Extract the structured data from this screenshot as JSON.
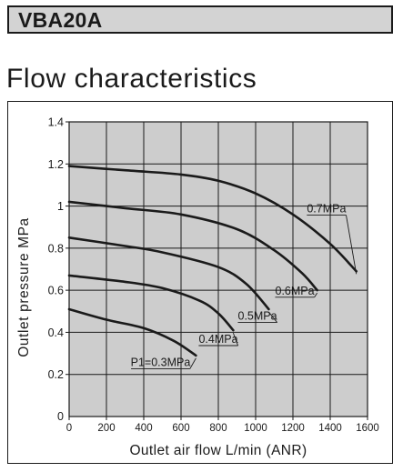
{
  "header": {
    "model": "VBA20A"
  },
  "section": {
    "title": "Flow characteristics"
  },
  "chart_data": {
    "type": "line",
    "xlabel": "Outlet air flow L/min (ANR)",
    "ylabel": "Outlet pressure MPa",
    "xlim": [
      0,
      1600
    ],
    "ylim": [
      0,
      1.4
    ],
    "x_ticks": [
      0,
      200,
      400,
      600,
      800,
      1000,
      1200,
      1400,
      1600
    ],
    "x_tick_labels": [
      "0",
      "200",
      "400",
      "600",
      "800",
      "1000",
      "1200",
      "1400",
      "1600"
    ],
    "y_ticks": [
      0.2,
      0.4,
      0.6,
      0.8,
      1.0,
      1.2,
      1.4
    ],
    "y_tick_labels": [
      "0.2",
      "0.4",
      "0.6",
      "0.8",
      "1",
      "1.2",
      "1.4"
    ],
    "origin_label": "0",
    "grid": true,
    "plot_background": "#cdcdcd",
    "line_color": "#1a1a1a",
    "series": [
      {
        "name": "P1=0.3MPa",
        "x": [
          0,
          200,
          400,
          560,
          680
        ],
        "y": [
          0.51,
          0.46,
          0.42,
          0.36,
          0.29
        ]
      },
      {
        "name": "0.4MPa",
        "x": [
          0,
          300,
          500,
          700,
          800,
          880
        ],
        "y": [
          0.67,
          0.64,
          0.61,
          0.55,
          0.49,
          0.41
        ]
      },
      {
        "name": "0.5MPa",
        "x": [
          0,
          300,
          500,
          800,
          950,
          1070
        ],
        "y": [
          0.85,
          0.81,
          0.78,
          0.71,
          0.63,
          0.51
        ]
      },
      {
        "name": "0.6MPa",
        "x": [
          0,
          300,
          600,
          900,
          1100,
          1250,
          1330
        ],
        "y": [
          1.02,
          0.99,
          0.96,
          0.89,
          0.79,
          0.68,
          0.6
        ]
      },
      {
        "name": "0.7MPa",
        "x": [
          0,
          300,
          600,
          800,
          1000,
          1200,
          1400,
          1540
        ],
        "y": [
          1.19,
          1.17,
          1.15,
          1.12,
          1.06,
          0.96,
          0.82,
          0.69
        ]
      }
    ],
    "annotations": [
      {
        "series": "P1=0.3MPa",
        "text": "P1=0.3MPa",
        "x": 490,
        "y": 0.24
      },
      {
        "series": "0.4MPa",
        "text": "0.4MPa",
        "x": 800,
        "y": 0.35
      },
      {
        "series": "0.5MPa",
        "text": "0.5MPa",
        "x": 1010,
        "y": 0.46
      },
      {
        "series": "0.6MPa",
        "text": "0.6MPa",
        "x": 1210,
        "y": 0.58
      },
      {
        "series": "0.7MPa",
        "text": "0.7MPa",
        "x": 1380,
        "y": 0.97
      }
    ]
  }
}
